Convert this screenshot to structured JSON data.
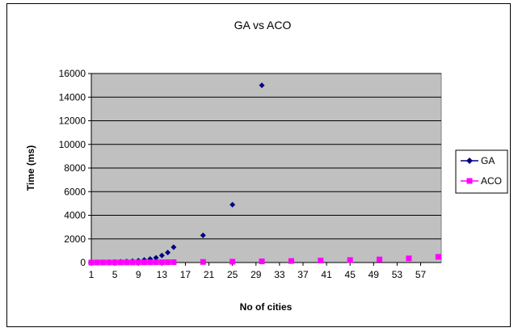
{
  "chart_data": {
    "type": "scatter",
    "title": "GA vs ACO",
    "xlabel": "No of cities",
    "ylabel": "Time (ms)",
    "ylim": [
      0,
      16000
    ],
    "yticks": [
      "0",
      "2000",
      "4000",
      "6000",
      "8000",
      "10000",
      "12000",
      "14000",
      "16000"
    ],
    "xlim": [
      1,
      60
    ],
    "xticks": [
      "1",
      "5",
      "9",
      "13",
      "17",
      "21",
      "25",
      "29",
      "33",
      "37",
      "41",
      "45",
      "49",
      "53",
      "57"
    ],
    "grid": true,
    "legend_position": "right",
    "series": [
      {
        "name": "GA",
        "color": "#000080",
        "marker": "diamond",
        "x": [
          1,
          2,
          3,
          4,
          5,
          6,
          7,
          8,
          9,
          10,
          11,
          12,
          13,
          14,
          15,
          20,
          25,
          30
        ],
        "y": [
          5,
          10,
          20,
          35,
          50,
          70,
          90,
          120,
          160,
          220,
          300,
          400,
          600,
          850,
          1300,
          2300,
          4900,
          15000
        ]
      },
      {
        "name": "ACO",
        "color": "#ff00ff",
        "marker": "square",
        "x": [
          1,
          2,
          3,
          4,
          5,
          6,
          7,
          8,
          9,
          10,
          11,
          12,
          13,
          14,
          15,
          20,
          25,
          30,
          35,
          40,
          45,
          50,
          55,
          60
        ],
        "y": [
          2,
          3,
          4,
          5,
          6,
          8,
          10,
          12,
          14,
          16,
          18,
          20,
          22,
          25,
          30,
          50,
          70,
          100,
          130,
          170,
          210,
          260,
          350,
          480
        ]
      }
    ]
  }
}
